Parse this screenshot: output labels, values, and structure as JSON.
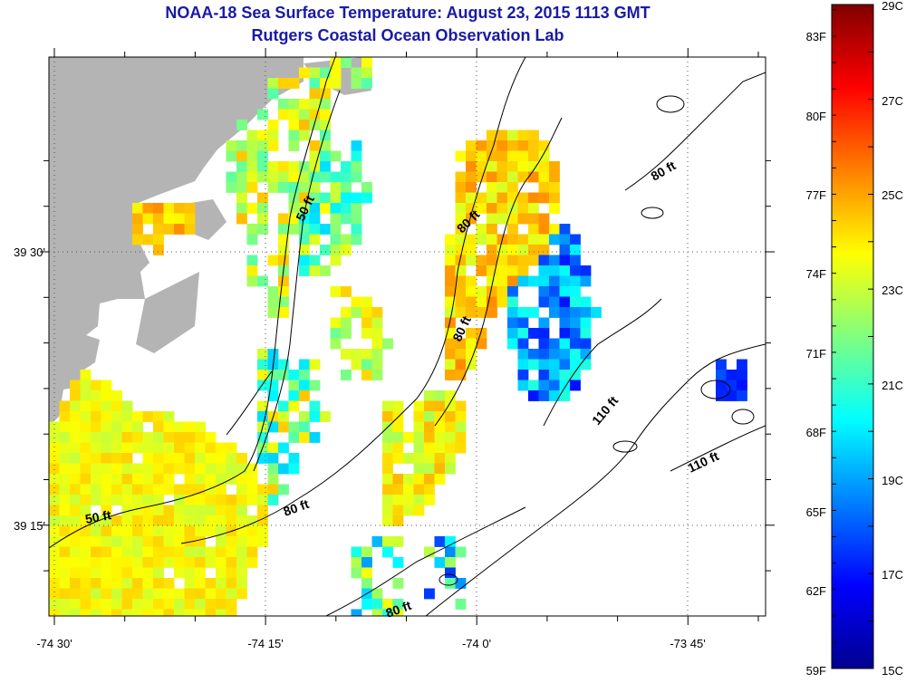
{
  "header": {
    "title": "NOAA-18 Sea Surface Temperature:  August 23, 2015 1113 GMT",
    "subtitle": "Rutgers Coastal Ocean Observation Lab"
  },
  "map": {
    "lon_ticks": [
      "-74 30'",
      "-74 15'",
      "-74 0'",
      "-73 45'"
    ],
    "lat_ticks": [
      "39 30'",
      "39 15'"
    ],
    "contour_labels": [
      "50 ft",
      "50 ft",
      "80 ft",
      "80 ft",
      "80 ft",
      "80 ft",
      "80 ft",
      "110 ft",
      "110 ft"
    ],
    "colors": {
      "land": "#b4b4b4",
      "no_data": "#ffffff",
      "contour": "#000000"
    }
  },
  "colorbar": {
    "fahrenheit_labels": [
      "83F",
      "80F",
      "77F",
      "74F",
      "71F",
      "68F",
      "65F",
      "62F",
      "59F"
    ],
    "celsius_labels": [
      "29C",
      "27C",
      "25C",
      "23C",
      "21C",
      "19C",
      "17C",
      "15C"
    ],
    "range_c": [
      15,
      29
    ],
    "colormap": "jet"
  }
}
